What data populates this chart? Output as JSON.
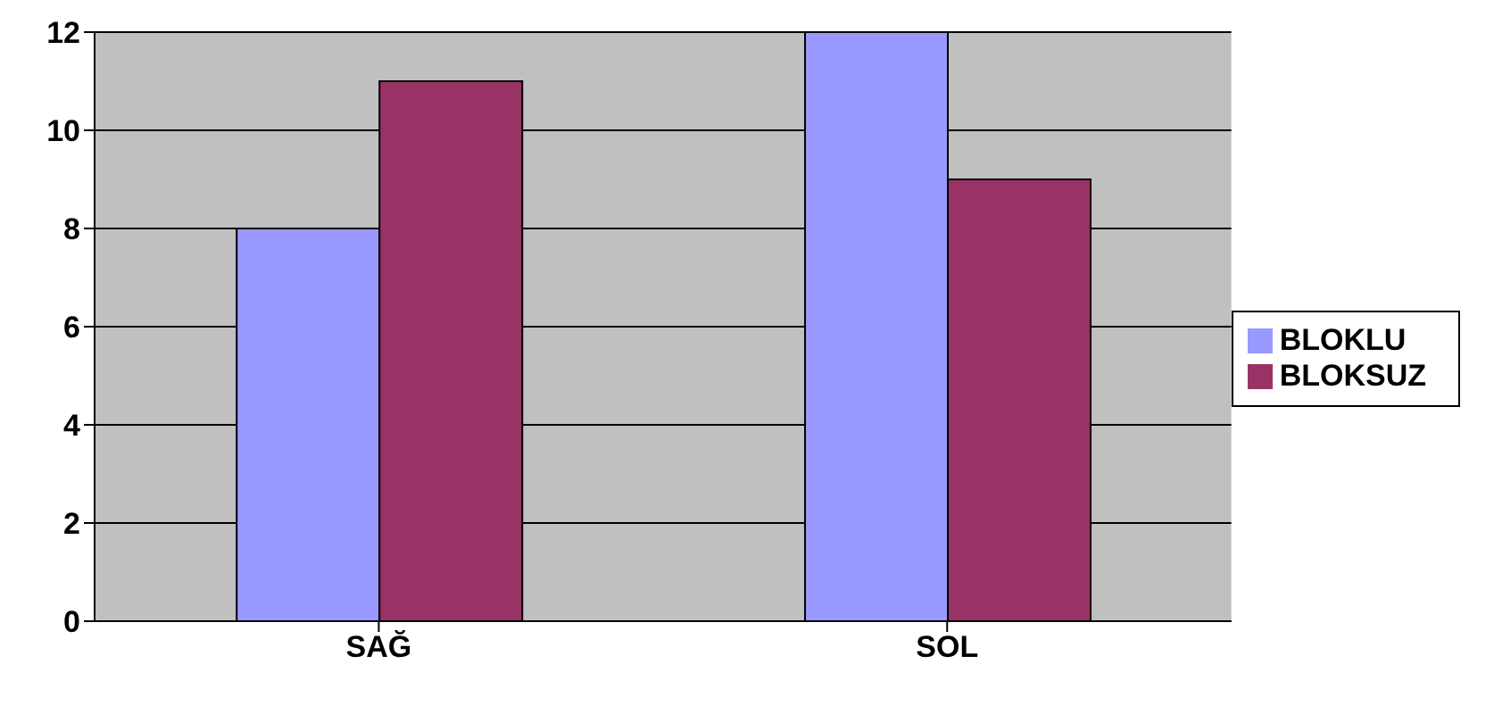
{
  "chart_data": {
    "type": "bar",
    "categories": [
      "SAĞ",
      "SOL"
    ],
    "series": [
      {
        "name": "BLOKLU",
        "color": "#9999ff",
        "values": [
          8,
          12
        ]
      },
      {
        "name": "BLOKSUZ",
        "color": "#993366",
        "values": [
          11,
          9
        ]
      }
    ],
    "ylim": [
      0,
      12
    ],
    "yticks": [
      0,
      2,
      4,
      6,
      8,
      10,
      12
    ],
    "grid": "y",
    "legend": "right"
  }
}
